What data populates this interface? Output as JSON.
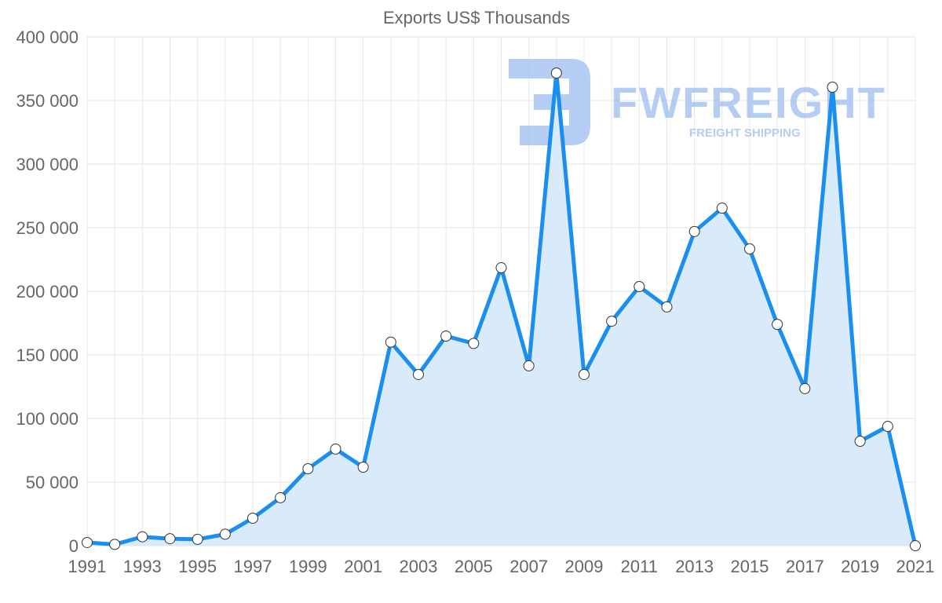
{
  "chart_data": {
    "type": "area",
    "title": "Exports US$ Thousands",
    "xlabel": "",
    "ylabel": "",
    "ylim": [
      0,
      400000
    ],
    "yticks": [
      0,
      50000,
      100000,
      150000,
      200000,
      250000,
      300000,
      350000,
      400000
    ],
    "ytick_labels": [
      "0",
      "50 000",
      "100 000",
      "150 000",
      "200 000",
      "250 000",
      "300 000",
      "350 000",
      "400 000"
    ],
    "x": [
      1991,
      1992,
      1993,
      1994,
      1995,
      1996,
      1997,
      1998,
      1999,
      2000,
      2001,
      2002,
      2003,
      2004,
      2005,
      2006,
      2007,
      2008,
      2009,
      2010,
      2011,
      2012,
      2013,
      2014,
      2015,
      2016,
      2017,
      2018,
      2019,
      2020,
      2021
    ],
    "xtick_labels": [
      "1991",
      "1993",
      "1995",
      "1997",
      "1999",
      "2001",
      "2003",
      "2005",
      "2007",
      "2009",
      "2011",
      "2013",
      "2015",
      "2017",
      "2019",
      "2021"
    ],
    "series": [
      {
        "name": "Exports US$ Thousands",
        "color": "#1a8ff0",
        "fill": "#d9ebfb",
        "values": [
          2500,
          1000,
          7000,
          5500,
          5000,
          9000,
          21600,
          37700,
          60500,
          76000,
          61700,
          160000,
          134600,
          164800,
          159000,
          218500,
          141400,
          371600,
          134600,
          176500,
          203700,
          187700,
          247000,
          265400,
          233300,
          174000,
          123500,
          360500,
          82100,
          93800,
          0
        ]
      }
    ],
    "grid": true,
    "legend": "none"
  },
  "watermark": {
    "brand": "FWFREIGHT",
    "tagline": "FREIGHT SHIPPING",
    "color": "#9dbdf0"
  }
}
